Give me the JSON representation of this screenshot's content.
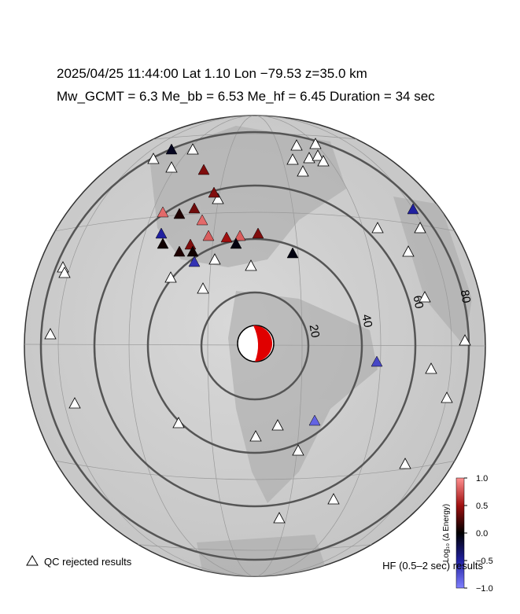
{
  "header": {
    "line1": "2025/04/25  11:44:00   Lat 1.10    Lon −79.53   z=35.0 km",
    "line2": "Mw_GCMT = 6.3   Me_bb = 6.53   Me_hf = 6.45   Duration = 34 sec"
  },
  "distance_rings": {
    "values": [
      20,
      40,
      60,
      80
    ]
  },
  "stations": {
    "values": [
      -0.1,
      0.4,
      0.4,
      -0.5,
      0.85,
      0.1,
      0.35,
      0.85,
      -0.5,
      0.8,
      0.4,
      0.5,
      0.8,
      0.4,
      -0.05,
      0.05,
      0.1,
      0.05,
      -0.6,
      -0.05,
      -0.7,
      -0.85
    ]
  },
  "colorbar": {
    "label": "Log₁₀ (Δ Energy)",
    "lim": [
      -1,
      1
    ],
    "ticks": [
      {
        "value": 1,
        "label": "1.0"
      },
      {
        "value": 0.5,
        "label": "0.5"
      },
      {
        "value": 0,
        "label": "0.0"
      },
      {
        "value": -0.5,
        "label": "−0.5"
      },
      {
        "value": -1,
        "label": "−1.0"
      }
    ]
  },
  "legend": {
    "rejected": "QC rejected results",
    "hf": "HF (0.5–2 sec) results"
  }
}
